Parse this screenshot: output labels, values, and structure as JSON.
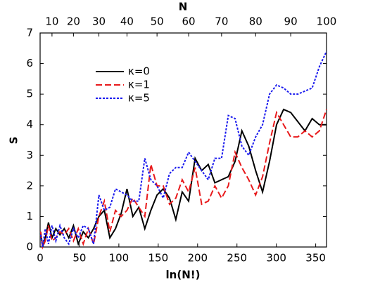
{
  "chart_data": {
    "type": "line",
    "xlabel": "ln(N!)",
    "ylabel": "S",
    "x2label": "N",
    "x": [
      0.69,
      3.18,
      6.58,
      10.6,
      15.1,
      19.99,
      25.19,
      30.67,
      36.4,
      42.34,
      48.47,
      54.78,
      61.26,
      67.89,
      74.66,
      81.56,
      88.58,
      95.72,
      102.97,
      110.32,
      117.77,
      125.32,
      132.95,
      140.67,
      148.48,
      156.36,
      164.32,
      172.35,
      180.45,
      188.63,
      196.86,
      205.17,
      213.53,
      221.96,
      230.44,
      238.99,
      247.59,
      256.24,
      264.95,
      273.71,
      282.52,
      291.38,
      300.29,
      309.25,
      318.25,
      327.29,
      336.38,
      345.52,
      354.69,
      363.74
    ],
    "series": [
      {
        "name": "κ=0",
        "color": "#000000",
        "dash": "solid",
        "values": [
          0.5,
          0,
          0.3,
          0.8,
          0.3,
          0.6,
          0.4,
          0.6,
          0.3,
          0.7,
          0.1,
          0.5,
          0.3,
          0.6,
          1.0,
          1.2,
          0.3,
          0.6,
          1.1,
          1.9,
          1.0,
          1.3,
          0.6,
          1.2,
          1.7,
          1.9,
          1.6,
          0.9,
          1.8,
          1.5,
          2.9,
          2.5,
          2.7,
          2.1,
          2.2,
          2.3,
          2.8,
          3.8,
          3.3,
          2.5,
          1.8,
          2.8,
          4.0,
          4.5,
          4.4,
          4.1,
          3.8,
          4.2,
          4.0,
          4.0
        ]
      },
      {
        "name": "κ=1",
        "color": "#e8191b",
        "dash": "long",
        "values": [
          0.5,
          0,
          0.2,
          0.7,
          0.2,
          0.3,
          0.5,
          0.4,
          0.6,
          0.2,
          0.6,
          0.1,
          0.6,
          0.1,
          1.0,
          1.5,
          0.5,
          1.2,
          1.0,
          1.2,
          1.6,
          1.3,
          1.0,
          2.7,
          2.0,
          2.0,
          1.4,
          1.6,
          2.2,
          1.8,
          2.6,
          1.4,
          1.5,
          2.0,
          1.6,
          2.0,
          3.1,
          2.6,
          2.2,
          1.7,
          2.3,
          3.4,
          4.4,
          4.0,
          3.6,
          3.6,
          3.8,
          3.6,
          3.8,
          4.5
        ]
      },
      {
        "name": "κ=5",
        "color": "#1a1aee",
        "dash": "short",
        "values": [
          0.4,
          0,
          0.6,
          0.1,
          0.7,
          0.2,
          0.7,
          0.3,
          0.1,
          0.6,
          0.3,
          0.7,
          0.6,
          0.1,
          1.7,
          1.2,
          1.3,
          1.9,
          1.8,
          1.7,
          1.5,
          1.5,
          2.9,
          2.2,
          2.0,
          1.6,
          2.4,
          2.6,
          2.6,
          3.1,
          2.8,
          2.5,
          2.2,
          2.9,
          2.9,
          4.3,
          4.2,
          3.3,
          3.0,
          3.6,
          4.0,
          5.0,
          5.3,
          5.2,
          5.0,
          5.0,
          5.1,
          5.2,
          5.9,
          6.4
        ]
      }
    ],
    "xlim": [
      0,
      363.74
    ],
    "ylim": [
      0,
      7
    ],
    "xticks": [
      0,
      50,
      100,
      150,
      200,
      250,
      300,
      350
    ],
    "yticks": [
      0,
      1,
      2,
      3,
      4,
      5,
      6,
      7
    ],
    "x2ticks": [
      {
        "value": 15.1,
        "label": "10"
      },
      {
        "value": 42.34,
        "label": "20"
      },
      {
        "value": 74.66,
        "label": "30"
      },
      {
        "value": 110.32,
        "label": "40"
      },
      {
        "value": 148.48,
        "label": "50"
      },
      {
        "value": 188.63,
        "label": "60"
      },
      {
        "value": 230.44,
        "label": "70"
      },
      {
        "value": 273.71,
        "label": "80"
      },
      {
        "value": 318.25,
        "label": "90"
      },
      {
        "value": 363.74,
        "label": "100"
      }
    ],
    "legend": "upper left"
  }
}
